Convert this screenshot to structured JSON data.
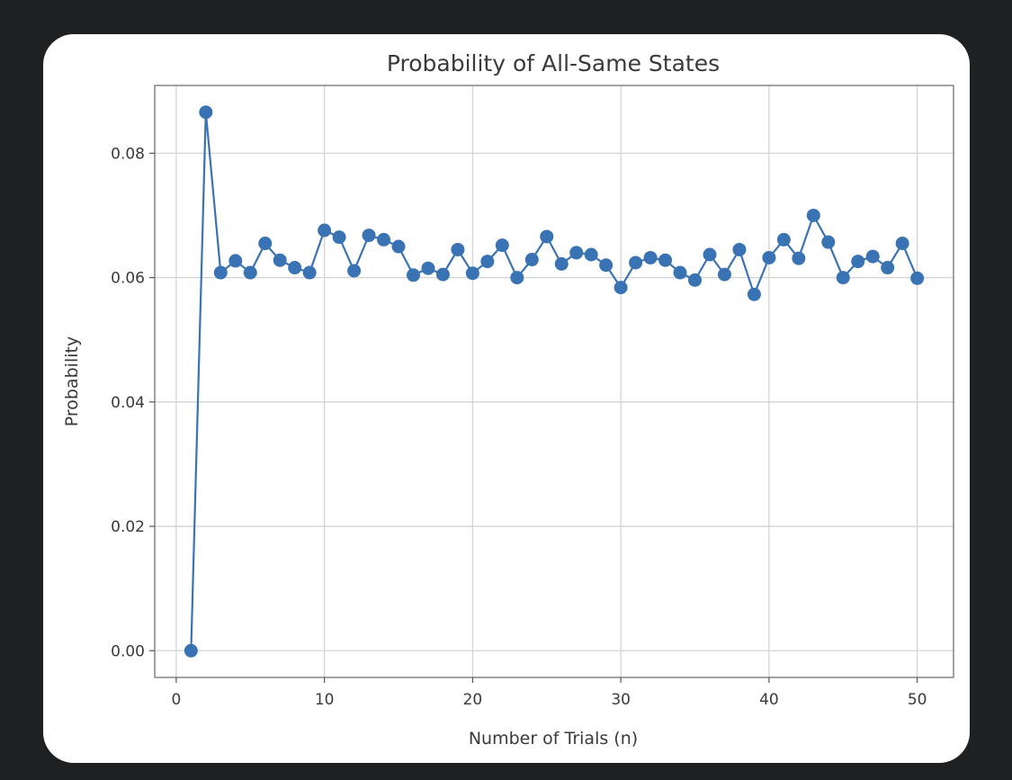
{
  "chart_data": {
    "type": "line",
    "title": "Probability of All-Same States",
    "xlabel": "Number of Trials (n)",
    "ylabel": "Probability",
    "xlim": [
      -1.45,
      52.45
    ],
    "ylim": [
      -0.0043,
      0.0909
    ],
    "xticks": [
      0,
      10,
      20,
      30,
      40,
      50
    ],
    "yticks": [
      0.0,
      0.02,
      0.04,
      0.06,
      0.08
    ],
    "xtick_labels": [
      "0",
      "10",
      "20",
      "30",
      "40",
      "50"
    ],
    "ytick_labels": [
      "0.00",
      "0.02",
      "0.04",
      "0.06",
      "0.08"
    ],
    "grid": true,
    "marker": "circle",
    "color": "#3a73b3",
    "series": [
      {
        "x": [
          1,
          2,
          3,
          4,
          5,
          6,
          7,
          8,
          9,
          10,
          11,
          12,
          13,
          14,
          15,
          16,
          17,
          18,
          19,
          20,
          21,
          22,
          23,
          24,
          25,
          26,
          27,
          28,
          29,
          30,
          31,
          32,
          33,
          34,
          35,
          36,
          37,
          38,
          39,
          40,
          41,
          42,
          43,
          44,
          45,
          46,
          47,
          48,
          49,
          50
        ],
        "values": [
          0.0,
          0.0866,
          0.0608,
          0.0627,
          0.0608,
          0.0655,
          0.0628,
          0.0616,
          0.0608,
          0.0676,
          0.0665,
          0.0611,
          0.0668,
          0.0661,
          0.065,
          0.0604,
          0.0615,
          0.0605,
          0.0645,
          0.0607,
          0.0626,
          0.0652,
          0.06,
          0.0629,
          0.0666,
          0.0622,
          0.064,
          0.0637,
          0.062,
          0.0584,
          0.0624,
          0.0632,
          0.0628,
          0.0608,
          0.0596,
          0.0637,
          0.0605,
          0.0645,
          0.0573,
          0.0632,
          0.0661,
          0.0631,
          0.07,
          0.0657,
          0.06,
          0.0626,
          0.0634,
          0.0616,
          0.0655,
          0.0599
        ]
      }
    ]
  }
}
